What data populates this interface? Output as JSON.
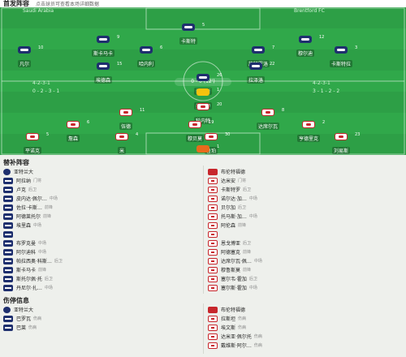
{
  "header": {
    "title": "首发阵容",
    "subtitle": "点击球员可查看本场详细数据"
  },
  "home_team": {
    "name": "Saudi Arabia",
    "formation": "4-2-3-1",
    "rating": "7.9"
  },
  "away_team": {
    "name": "Brentford FC",
    "formation": "4-2-3-1",
    "rating": "7.4"
  },
  "score": {
    "left": "0 - 2 - 3 - 1",
    "right": "3 - 1 - 2 - 2"
  },
  "vs": "0 - 0 (12')",
  "home_players": [
    {
      "name": "卡斯特",
      "num": "5"
    },
    {
      "name": "斯卡马卡",
      "num": "9"
    },
    {
      "name": "穆尔迪",
      "num": "12"
    },
    {
      "name": "凡尔",
      "num": "10"
    },
    {
      "name": "哈内利",
      "num": "6"
    },
    {
      "name": "施特罗洛",
      "num": "7"
    },
    {
      "name": "卡斯特拉",
      "num": "3"
    },
    {
      "name": "埃德森",
      "num": "15"
    },
    {
      "name": "拉泽洛",
      "num": "22"
    },
    {
      "name": "扎巴斯",
      "num": "26"
    },
    {
      "name": "托洛伊",
      "num": "1"
    }
  ],
  "away_players": [
    {
      "name": "科内特",
      "num": "20"
    },
    {
      "name": "伍德",
      "num": "11"
    },
    {
      "name": "达席尔瓦",
      "num": "8"
    },
    {
      "name": "詹森",
      "num": "6"
    },
    {
      "name": "穆贝莫",
      "num": "19"
    },
    {
      "name": "亨德里克",
      "num": "2"
    },
    {
      "name": "平诺克",
      "num": "5"
    },
    {
      "name": "米",
      "num": "4"
    },
    {
      "name": "鲁珀",
      "num": "30"
    },
    {
      "name": "刘易斯",
      "num": "23"
    },
    {
      "name": "弗莱肯",
      "num": "1"
    }
  ],
  "bench_title": "替补阵容",
  "bench_home": [
    {
      "name": "亚特兰大",
      "sub": "",
      "min": "",
      "type": "logo-home"
    },
    {
      "name": "阿拉纳",
      "sub": "门将",
      "min": "",
      "type": "home"
    },
    {
      "name": "卢克",
      "sub": "后卫",
      "min": "",
      "type": "home"
    },
    {
      "name": "皮内达·佩尔…",
      "sub": "中场",
      "min": "",
      "type": "home"
    },
    {
      "name": "佐拉·卡斯…",
      "sub": "前锋",
      "min": "",
      "type": "home"
    },
    {
      "name": "阿德莱托尔",
      "sub": "前锋",
      "min": "",
      "type": "home"
    },
    {
      "name": "埃里森",
      "sub": "中场",
      "min": "",
      "type": "home"
    },
    {
      "name": "",
      "sub": "",
      "min": "",
      "type": "home"
    },
    {
      "name": "布罗克曼",
      "sub": "中场",
      "min": "",
      "type": "home"
    },
    {
      "name": "阿尔迪科",
      "sub": "中场",
      "min": "",
      "type": "home"
    },
    {
      "name": "帕拉西奥·科斯…",
      "sub": "后卫",
      "min": "",
      "type": "home"
    },
    {
      "name": "斯卡马卡",
      "sub": "前锋",
      "min": "",
      "type": "home"
    },
    {
      "name": "斯托尔佩·托",
      "sub": "后卫",
      "min": "",
      "type": "home"
    },
    {
      "name": "丹尼尔·扎…",
      "sub": "中场",
      "min": "",
      "type": "home"
    }
  ],
  "bench_away": [
    {
      "name": "布伦特福德",
      "sub": "",
      "min": "",
      "type": "logo-away"
    },
    {
      "name": "达米安",
      "sub": "门将",
      "min": "",
      "type": "away"
    },
    {
      "name": "卡斯特罗",
      "sub": "后卫",
      "min": "",
      "type": "away"
    },
    {
      "name": "诺尔达·加…",
      "sub": "中场",
      "min": "",
      "type": "away"
    },
    {
      "name": "贝尔加",
      "sub": "后卫",
      "min": "",
      "type": "away"
    },
    {
      "name": "托马斯·加…",
      "sub": "中场",
      "min": "",
      "type": "away"
    },
    {
      "name": "阿伦森",
      "sub": "前锋",
      "min": "",
      "type": "away"
    },
    {
      "name": "",
      "sub": "",
      "min": "",
      "type": "away"
    },
    {
      "name": "恩戈博亚",
      "sub": "后卫",
      "min": "",
      "type": "away"
    },
    {
      "name": "阿德塞克",
      "sub": "前锋",
      "min": "",
      "type": "away"
    },
    {
      "name": "达席尔瓦·佩…",
      "sub": "中场",
      "min": "",
      "type": "away"
    },
    {
      "name": "穆鲁斯莫",
      "sub": "前锋",
      "min": "",
      "type": "away"
    },
    {
      "name": "塞尔韦·霍加",
      "sub": "后卫",
      "min": "",
      "type": "away"
    },
    {
      "name": "塞尔斯·霍加",
      "sub": "中场",
      "min": "",
      "type": "away"
    }
  ],
  "injury_title": "伤停信息",
  "injury_home": [
    {
      "name": "亚特兰大",
      "sub": "",
      "type": "logo-home"
    },
    {
      "name": "巴罗瓦",
      "sub": "伤病",
      "type": "home"
    },
    {
      "name": "巴莱",
      "sub": "伤病",
      "type": "home"
    }
  ],
  "injury_away": [
    {
      "name": "布伦特福德",
      "sub": "",
      "type": "logo-away"
    },
    {
      "name": "拉斯坦",
      "sub": "伤病",
      "type": "away"
    },
    {
      "name": "埃文斯",
      "sub": "伤病",
      "type": "away"
    },
    {
      "name": "达米亚·佩尔托",
      "sub": "伤病",
      "type": "away"
    },
    {
      "name": "戴维斯·阿尔…",
      "sub": "伤病",
      "type": "away"
    }
  ]
}
